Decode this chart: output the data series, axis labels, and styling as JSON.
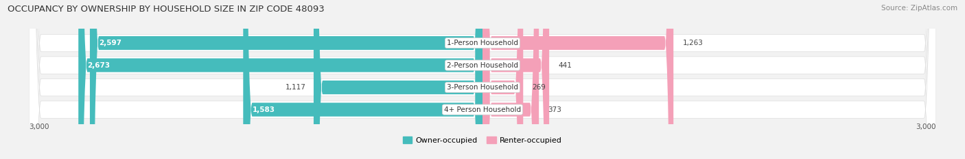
{
  "title": "OCCUPANCY BY OWNERSHIP BY HOUSEHOLD SIZE IN ZIP CODE 48093",
  "source": "Source: ZipAtlas.com",
  "categories": [
    "1-Person Household",
    "2-Person Household",
    "3-Person Household",
    "4+ Person Household"
  ],
  "owner_values": [
    2597,
    2673,
    1117,
    1583
  ],
  "renter_values": [
    1263,
    441,
    269,
    373
  ],
  "owner_color": "#45BCBC",
  "renter_color": "#F07090",
  "renter_color_light": "#F4A0B8",
  "bg_color": "#F2F2F2",
  "bar_row_bg": "#FFFFFF",
  "x_max": 3000,
  "axis_label": "3,000",
  "title_fontsize": 9.5,
  "source_fontsize": 7.5,
  "cat_fontsize": 7.5,
  "val_fontsize": 7.5,
  "legend_fontsize": 8,
  "bar_height": 0.62,
  "figsize": [
    14.06,
    2.33
  ]
}
